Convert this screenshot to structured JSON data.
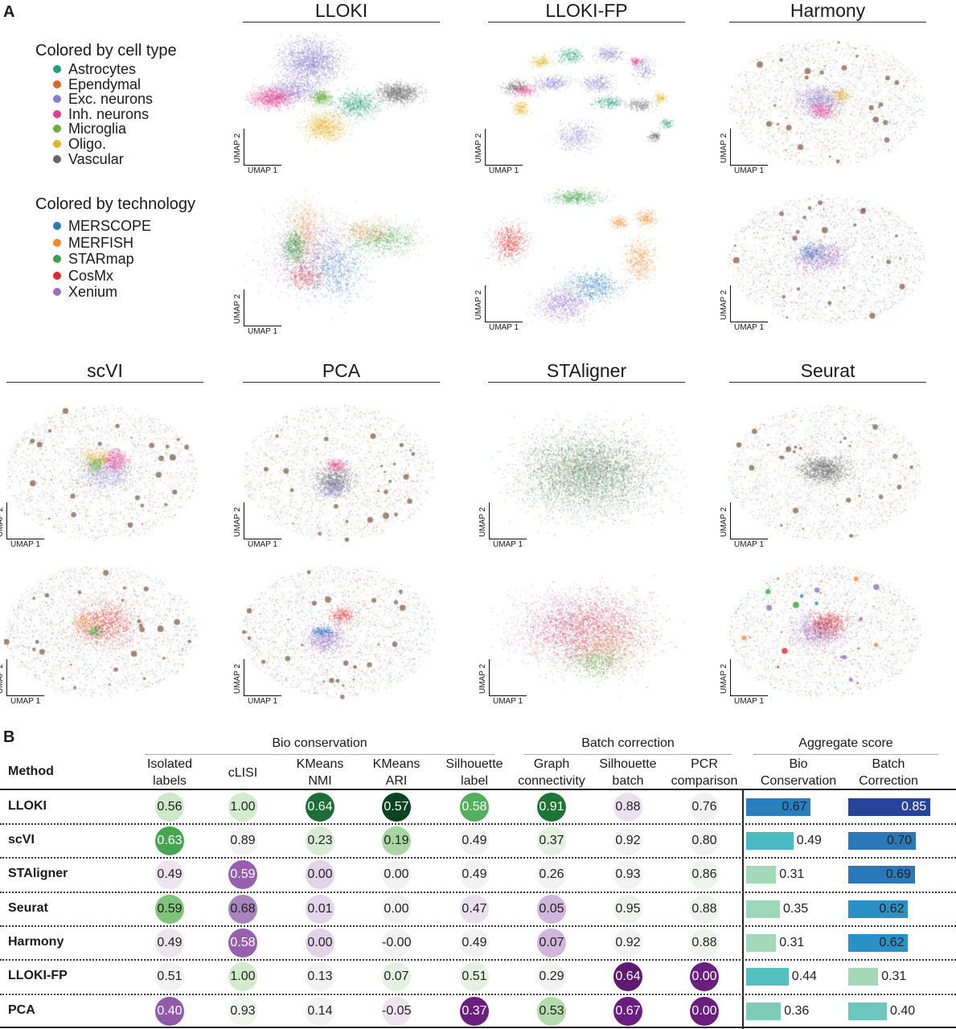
{
  "panel_a": {
    "letter": "A",
    "legend_cell_type": {
      "title": "Colored by cell type",
      "items": [
        {
          "label": "Astrocytes",
          "color": "#2a9d78"
        },
        {
          "label": "Ependymal",
          "color": "#e0652a"
        },
        {
          "label": "Exc. neurons",
          "color": "#8a7fc8"
        },
        {
          "label": "Inh. neurons",
          "color": "#e43d8c"
        },
        {
          "label": "Microglia",
          "color": "#6aae3e"
        },
        {
          "label": "Oligo.",
          "color": "#e6b22a"
        },
        {
          "label": "Vascular",
          "color": "#666666"
        }
      ]
    },
    "legend_technology": {
      "title": "Colored by technology",
      "items": [
        {
          "label": "MERSCOPE",
          "color": "#2a7ab8"
        },
        {
          "label": "MERFISH",
          "color": "#f28a30"
        },
        {
          "label": "STARmap",
          "color": "#3aa044"
        },
        {
          "label": "CosMx",
          "color": "#d83030"
        },
        {
          "label": "Xenium",
          "color": "#9a6ec0"
        }
      ]
    },
    "methods": [
      "LLOKI",
      "LLOKI-FP",
      "Harmony",
      "scVI",
      "PCA",
      "STAligner",
      "Seurat"
    ],
    "axis_x": "UMAP 1",
    "axis_y": "UMAP 2"
  },
  "panel_b": {
    "letter": "B",
    "method_header": "Method",
    "groups": [
      "Bio conservation",
      "Batch correction",
      "Aggregate score"
    ],
    "columns": [
      [
        "Isolated",
        "labels"
      ],
      [
        "",
        "cLISI"
      ],
      [
        "KMeans",
        "NMI"
      ],
      [
        "KMeans",
        "ARI"
      ],
      [
        "Silhouette",
        "label"
      ],
      [
        "Graph",
        "connectivity"
      ],
      [
        "Silhouette",
        "batch"
      ],
      [
        "PCR",
        "comparison"
      ],
      [
        "Bio",
        "Conservation"
      ],
      [
        "Batch",
        "Correction"
      ]
    ],
    "rows": [
      {
        "method": "LLOKI",
        "cells": [
          {
            "v": "0.56",
            "fill": "#cfe8c8",
            "text": "#222"
          },
          {
            "v": "1.00",
            "fill": "#d3ebcd",
            "text": "#222"
          },
          {
            "v": "0.64",
            "fill": "#1d6e36",
            "text": "#fff"
          },
          {
            "v": "0.57",
            "fill": "#0b4220",
            "text": "#fff"
          },
          {
            "v": "0.58",
            "fill": "#55ae5e",
            "text": "#fff"
          },
          {
            "v": "0.91",
            "fill": "#1f7438",
            "text": "#fff"
          },
          {
            "v": "0.88",
            "fill": "#ecdff0",
            "text": "#222"
          },
          {
            "v": "0.76",
            "fill": "#f1f1f1",
            "text": "#222"
          }
        ],
        "bio": {
          "v": 0.67,
          "label": "0.67",
          "color": "#2a7fbc",
          "text": "#222"
        },
        "batch": {
          "v": 0.85,
          "label": "0.85",
          "color": "#26449a",
          "text": "#fff"
        }
      },
      {
        "method": "scVI",
        "cells": [
          {
            "v": "0.63",
            "fill": "#45a552",
            "text": "#fff"
          },
          {
            "v": "0.89",
            "fill": "#f2f2f2",
            "text": "#222"
          },
          {
            "v": "0.23",
            "fill": "#d8ecd3",
            "text": "#222"
          },
          {
            "v": "0.19",
            "fill": "#a9d6a3",
            "text": "#222"
          },
          {
            "v": "0.49",
            "fill": "#f2f2f2",
            "text": "#222"
          },
          {
            "v": "0.37",
            "fill": "#e4f1e0",
            "text": "#222"
          },
          {
            "v": "0.92",
            "fill": "#f2f2f2",
            "text": "#222"
          },
          {
            "v": "0.80",
            "fill": "#f2f2f2",
            "text": "#222"
          }
        ],
        "bio": {
          "v": 0.49,
          "label": "0.49",
          "color": "#4bbac4",
          "text": "#222"
        },
        "batch": {
          "v": 0.7,
          "label": "0.70",
          "color": "#2a78b8",
          "text": "#222"
        }
      },
      {
        "method": "STAligner",
        "cells": [
          {
            "v": "0.49",
            "fill": "#efe3f1",
            "text": "#222"
          },
          {
            "v": "0.59",
            "fill": "#9660ae",
            "text": "#fff"
          },
          {
            "v": "0.00",
            "fill": "#e3d2e8",
            "text": "#222"
          },
          {
            "v": "0.00",
            "fill": "#f2f2f2",
            "text": "#222"
          },
          {
            "v": "0.49",
            "fill": "#f2f2f2",
            "text": "#222"
          },
          {
            "v": "0.26",
            "fill": "#f2f2f2",
            "text": "#222"
          },
          {
            "v": "0.93",
            "fill": "#f2f2f2",
            "text": "#222"
          },
          {
            "v": "0.86",
            "fill": "#eef4ec",
            "text": "#222"
          }
        ],
        "bio": {
          "v": 0.31,
          "label": "0.31",
          "color": "#a3d9b8",
          "text": "#222"
        },
        "batch": {
          "v": 0.69,
          "label": "0.69",
          "color": "#2a78b8",
          "text": "#222"
        }
      },
      {
        "method": "Seurat",
        "cells": [
          {
            "v": "0.59",
            "fill": "#80c47c",
            "text": "#222"
          },
          {
            "v": "0.68",
            "fill": "#a983bd",
            "text": "#222"
          },
          {
            "v": "0.01",
            "fill": "#e5d5ea",
            "text": "#222"
          },
          {
            "v": "0.00",
            "fill": "#f2f2f2",
            "text": "#222"
          },
          {
            "v": "0.47",
            "fill": "#ecdff0",
            "text": "#222"
          },
          {
            "v": "0.05",
            "fill": "#d0b6da",
            "text": "#222"
          },
          {
            "v": "0.95",
            "fill": "#eef4ec",
            "text": "#222"
          },
          {
            "v": "0.88",
            "fill": "#eef4ec",
            "text": "#222"
          }
        ],
        "bio": {
          "v": 0.35,
          "label": "0.35",
          "color": "#9ed6b8",
          "text": "#222"
        },
        "batch": {
          "v": 0.62,
          "label": "0.62",
          "color": "#2a90c8",
          "text": "#222"
        }
      },
      {
        "method": "Harmony",
        "cells": [
          {
            "v": "0.49",
            "fill": "#efe3f1",
            "text": "#222"
          },
          {
            "v": "0.58",
            "fill": "#9660ae",
            "text": "#fff"
          },
          {
            "v": "0.00",
            "fill": "#e3d2e8",
            "text": "#222"
          },
          {
            "v": "-0.00",
            "fill": "#f2f2f2",
            "text": "#222"
          },
          {
            "v": "0.49",
            "fill": "#f2f2f2",
            "text": "#222"
          },
          {
            "v": "0.07",
            "fill": "#d0b6da",
            "text": "#222"
          },
          {
            "v": "0.92",
            "fill": "#f2f2f2",
            "text": "#222"
          },
          {
            "v": "0.88",
            "fill": "#eef4ec",
            "text": "#222"
          }
        ],
        "bio": {
          "v": 0.31,
          "label": "0.31",
          "color": "#a3d9b8",
          "text": "#222"
        },
        "batch": {
          "v": 0.62,
          "label": "0.62",
          "color": "#2a90c8",
          "text": "#222"
        }
      },
      {
        "method": "LLOKI-FP",
        "cells": [
          {
            "v": "0.51",
            "fill": "#f2f2f2",
            "text": "#222"
          },
          {
            "v": "1.00",
            "fill": "#d3ebcd",
            "text": "#222"
          },
          {
            "v": "0.13",
            "fill": "#f2f2f2",
            "text": "#222"
          },
          {
            "v": "0.07",
            "fill": "#e4f1e0",
            "text": "#222"
          },
          {
            "v": "0.51",
            "fill": "#e4f1e0",
            "text": "#222"
          },
          {
            "v": "0.29",
            "fill": "#f2f2f2",
            "text": "#222"
          },
          {
            "v": "0.64",
            "fill": "#5e1a70",
            "text": "#fff"
          },
          {
            "v": "0.00",
            "fill": "#6a1f7e",
            "text": "#fff"
          }
        ],
        "bio": {
          "v": 0.44,
          "label": "0.44",
          "color": "#55c0c0",
          "text": "#222"
        },
        "batch": {
          "v": 0.31,
          "label": "0.31",
          "color": "#a3d9b8",
          "text": "#222"
        }
      },
      {
        "method": "PCA",
        "cells": [
          {
            "v": "0.40",
            "fill": "#8f5aa8",
            "text": "#fff"
          },
          {
            "v": "0.93",
            "fill": "#f0f5ee",
            "text": "#222"
          },
          {
            "v": "0.14",
            "fill": "#f2f2f2",
            "text": "#222"
          },
          {
            "v": "-0.05",
            "fill": "#efe3f1",
            "text": "#222"
          },
          {
            "v": "0.37",
            "fill": "#6a1f7e",
            "text": "#fff"
          },
          {
            "v": "0.53",
            "fill": "#b5dcae",
            "text": "#222"
          },
          {
            "v": "0.67",
            "fill": "#6a1f7e",
            "text": "#fff"
          },
          {
            "v": "0.00",
            "fill": "#6a1f7e",
            "text": "#fff"
          }
        ],
        "bio": {
          "v": 0.36,
          "label": "0.36",
          "color": "#7fcbb9",
          "text": "#222"
        },
        "batch": {
          "v": 0.4,
          "label": "0.40",
          "color": "#6cc7bf",
          "text": "#222"
        }
      }
    ]
  }
}
